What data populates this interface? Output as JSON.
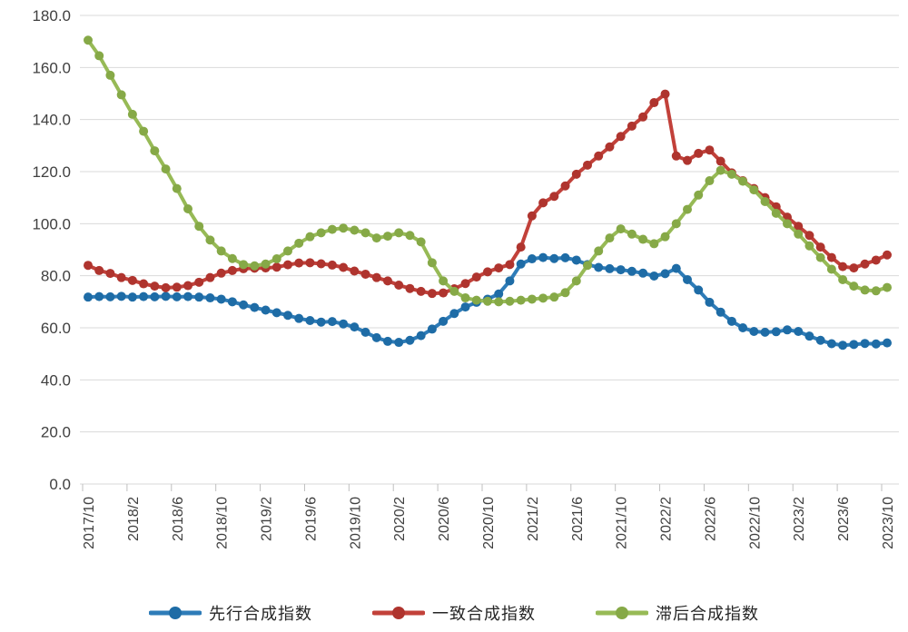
{
  "chart_data": {
    "type": "line",
    "title": "",
    "xlabel": "",
    "ylabel": "",
    "ylim": [
      0,
      180
    ],
    "y_tick_step": 20,
    "y_tick_labels": [
      "0.0",
      "20.0",
      "40.0",
      "60.0",
      "80.0",
      "100.0",
      "120.0",
      "140.0",
      "160.0",
      "180.0"
    ],
    "grid": "horizontal",
    "gridline_color": "#d9d9d9",
    "axis_line_color": "#bfbfbf",
    "background": "#ffffff",
    "legend_position": "bottom",
    "x_tick_every": 4,
    "x": [
      "2017/10",
      "2017/11",
      "2017/12",
      "2018/1",
      "2018/2",
      "2018/3",
      "2018/4",
      "2018/5",
      "2018/6",
      "2018/7",
      "2018/8",
      "2018/9",
      "2018/10",
      "2018/11",
      "2018/12",
      "2019/1",
      "2019/2",
      "2019/3",
      "2019/4",
      "2019/5",
      "2019/6",
      "2019/7",
      "2019/8",
      "2019/9",
      "2019/10",
      "2019/11",
      "2019/12",
      "2020/1",
      "2020/2",
      "2020/3",
      "2020/4",
      "2020/5",
      "2020/6",
      "2020/7",
      "2020/8",
      "2020/9",
      "2020/10",
      "2020/11",
      "2020/12",
      "2021/1",
      "2021/2",
      "2021/3",
      "2021/4",
      "2021/5",
      "2021/6",
      "2021/7",
      "2021/8",
      "2021/9",
      "2021/10",
      "2021/11",
      "2021/12",
      "2022/1",
      "2022/2",
      "2022/3",
      "2022/4",
      "2022/5",
      "2022/6",
      "2022/7",
      "2022/8",
      "2022/9",
      "2022/10",
      "2022/11",
      "2022/12",
      "2023/1",
      "2023/2",
      "2023/3",
      "2023/4",
      "2023/5",
      "2023/6",
      "2023/7",
      "2023/8",
      "2023/9",
      "2023/10"
    ],
    "series": [
      {
        "name": "先行合成指数",
        "color": "#2e7cb8",
        "marker_color": "#1e6ca6",
        "values": [
          71.8,
          72.0,
          71.9,
          72.1,
          71.8,
          72.0,
          71.9,
          72.1,
          71.9,
          72.0,
          71.8,
          71.5,
          71.0,
          70.0,
          68.8,
          67.8,
          66.8,
          65.8,
          64.8,
          63.6,
          62.8,
          62.2,
          62.4,
          61.5,
          60.3,
          58.3,
          56.2,
          54.8,
          54.4,
          55.2,
          57.0,
          59.5,
          62.5,
          65.5,
          68.0,
          69.8,
          71.0,
          73.0,
          78.0,
          84.5,
          86.5,
          87.0,
          86.6,
          86.9,
          86.0,
          84.3,
          83.2,
          82.7,
          82.3,
          81.7,
          81.0,
          79.9,
          80.8,
          82.8,
          78.5,
          74.5,
          69.8,
          66.0,
          62.5,
          60.0,
          58.6,
          58.3,
          58.5,
          59.2,
          58.6,
          56.8,
          55.2,
          53.9,
          53.3,
          53.6,
          54.0,
          53.8,
          54.2
        ]
      },
      {
        "name": "一致合成指数",
        "color": "#c2413a",
        "marker_color": "#af342e",
        "values": [
          84.0,
          82.0,
          80.9,
          79.3,
          78.2,
          76.9,
          76.0,
          75.4,
          75.6,
          76.2,
          77.5,
          79.3,
          81.0,
          82.0,
          82.7,
          82.9,
          83.0,
          83.3,
          84.2,
          84.9,
          85.0,
          84.6,
          84.1,
          83.2,
          81.8,
          80.6,
          79.3,
          78.0,
          76.4,
          75.1,
          74.0,
          73.2,
          73.4,
          75.0,
          77.0,
          79.5,
          81.5,
          83.0,
          84.3,
          91.0,
          103.0,
          108.0,
          110.5,
          114.5,
          119.0,
          122.5,
          126.0,
          129.5,
          133.5,
          137.5,
          141.0,
          146.5,
          149.8,
          126.0,
          124.3,
          127.0,
          128.3,
          124.0,
          119.5,
          116.5,
          113.5,
          110.0,
          106.5,
          102.5,
          99.0,
          95.5,
          91.0,
          87.0,
          83.5,
          83.0,
          84.5,
          86.0,
          88.0
        ]
      },
      {
        "name": "滞后合成指数",
        "color": "#97ba56",
        "marker_color": "#86a947",
        "values": [
          170.5,
          164.5,
          157.0,
          149.5,
          142.0,
          135.5,
          128.0,
          121.0,
          113.5,
          105.7,
          99.0,
          93.7,
          89.5,
          86.6,
          84.3,
          83.8,
          84.5,
          86.5,
          89.5,
          92.5,
          95.0,
          96.5,
          97.8,
          98.3,
          97.5,
          96.5,
          94.5,
          95.2,
          96.5,
          95.5,
          93.0,
          85.0,
          78.0,
          74.0,
          71.5,
          70.6,
          70.2,
          70.0,
          70.2,
          70.6,
          71.0,
          71.4,
          71.8,
          73.5,
          78.0,
          84.0,
          89.5,
          94.5,
          98.0,
          96.0,
          94.0,
          92.3,
          95.0,
          100.0,
          105.5,
          111.0,
          116.5,
          120.5,
          119.0,
          116.3,
          113.0,
          108.5,
          104.0,
          100.0,
          96.0,
          91.5,
          87.0,
          82.5,
          78.5,
          76.0,
          74.5,
          74.2,
          75.5
        ]
      }
    ]
  }
}
